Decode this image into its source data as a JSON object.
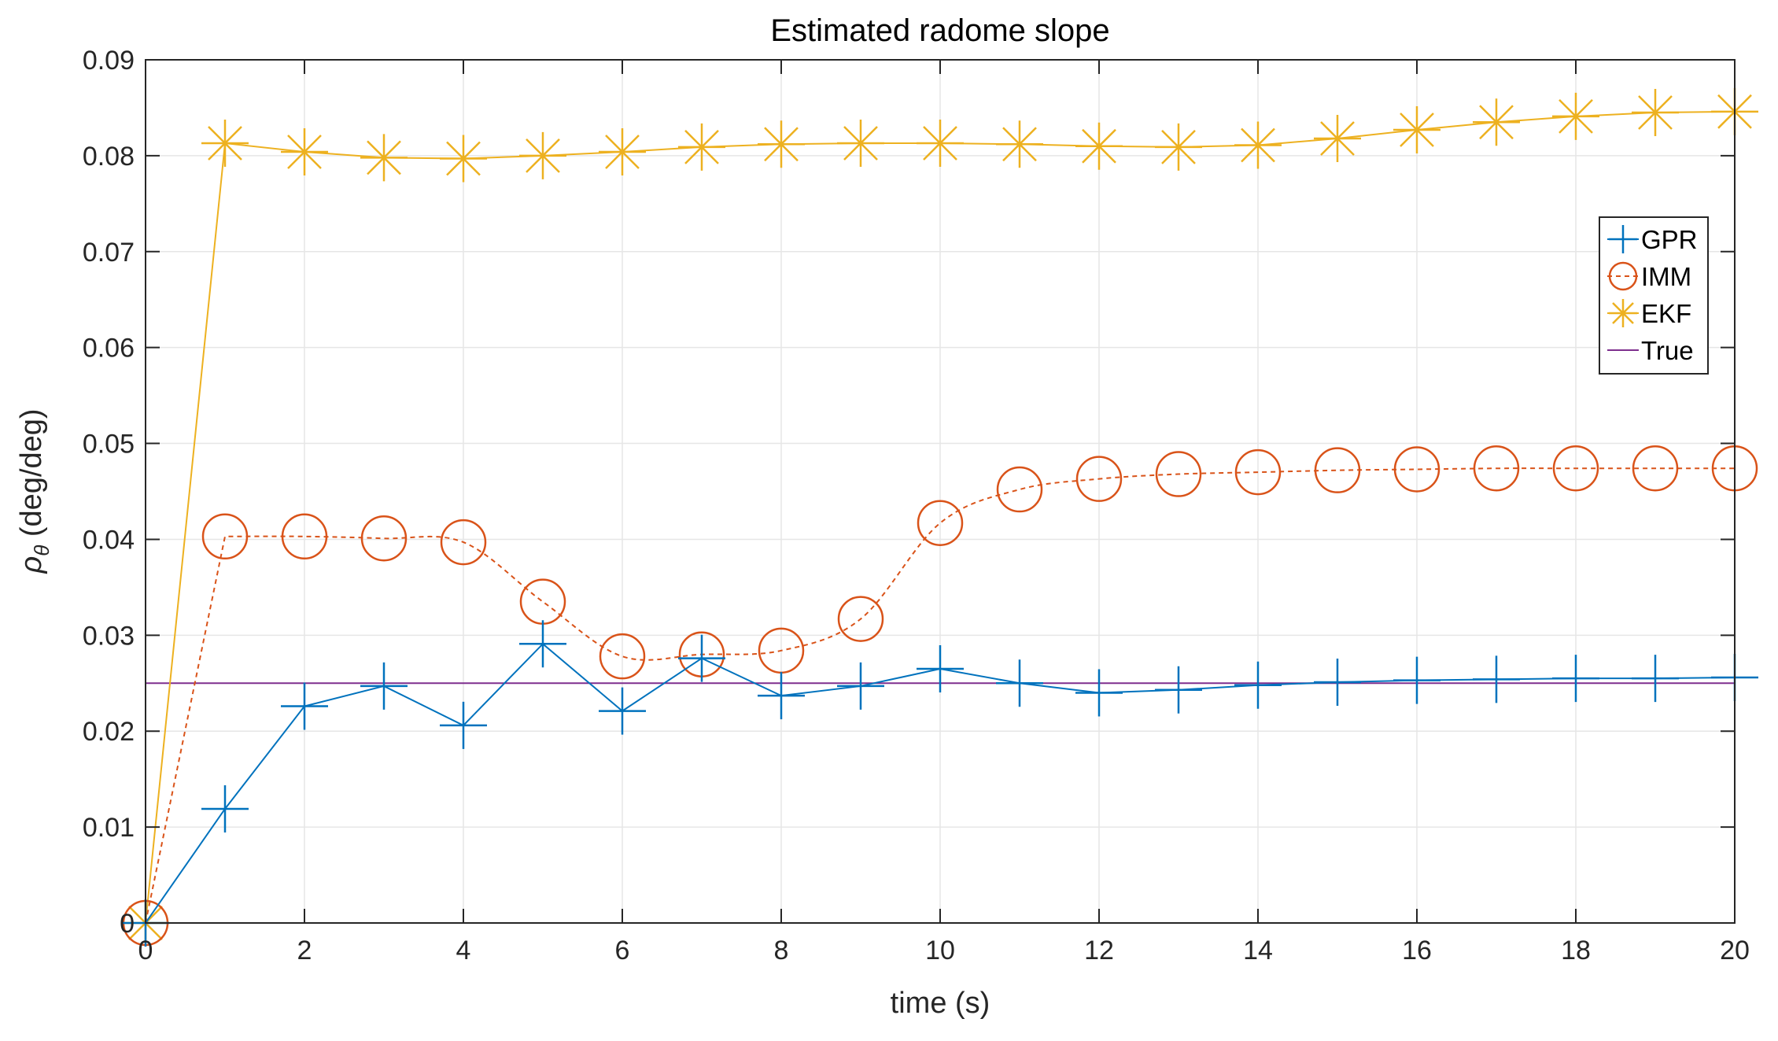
{
  "chart_data": {
    "type": "line",
    "title": "Estimated radome slope",
    "xlabel": "time (s)",
    "ylabel": {
      "symbol": "ρ",
      "subscript": "θ",
      "unit": " (deg/deg)"
    },
    "xlim": [
      0,
      20
    ],
    "ylim": [
      0,
      0.09
    ],
    "xticks": [
      0,
      2,
      4,
      6,
      8,
      10,
      12,
      14,
      16,
      18,
      20
    ],
    "xtick_labels": [
      "0",
      "2",
      "4",
      "6",
      "8",
      "10",
      "12",
      "14",
      "16",
      "18",
      "20"
    ],
    "yticks": [
      0,
      0.01,
      0.02,
      0.03,
      0.04,
      0.05,
      0.06,
      0.07,
      0.08,
      0.09
    ],
    "ytick_labels": [
      "0",
      "0.01",
      "0.02",
      "0.03",
      "0.04",
      "0.05",
      "0.06",
      "0.07",
      "0.08",
      "0.09"
    ],
    "grid": true,
    "legend_position": "right",
    "x": [
      0,
      1,
      2,
      3,
      4,
      5,
      6,
      7,
      8,
      9,
      10,
      11,
      12,
      13,
      14,
      15,
      16,
      17,
      18,
      19,
      20
    ],
    "series": [
      {
        "name": "GPR",
        "color": "#0072BD",
        "line": "solid",
        "marker": "plus",
        "values": [
          0.0,
          0.0119,
          0.0226,
          0.0247,
          0.0206,
          0.0291,
          0.0221,
          0.0276,
          0.0237,
          0.0247,
          0.0265,
          0.025,
          0.024,
          0.0243,
          0.0248,
          0.0251,
          0.0253,
          0.0254,
          0.0255,
          0.0255,
          0.0256
        ]
      },
      {
        "name": "IMM",
        "color": "#D95319",
        "line": "dashed",
        "marker": "circle",
        "values": [
          0.0,
          0.0403,
          0.0403,
          0.0401,
          0.0397,
          0.0335,
          0.0278,
          0.028,
          0.0284,
          0.0317,
          0.0417,
          0.0452,
          0.0463,
          0.0468,
          0.047,
          0.0472,
          0.0473,
          0.0474,
          0.0474,
          0.0474,
          0.0474
        ]
      },
      {
        "name": "EKF",
        "color": "#EDB120",
        "line": "solid",
        "marker": "asterisk",
        "values": [
          0.0,
          0.0813,
          0.0804,
          0.0798,
          0.0797,
          0.08,
          0.0804,
          0.0809,
          0.0812,
          0.0813,
          0.0813,
          0.0812,
          0.081,
          0.0809,
          0.0811,
          0.0818,
          0.0827,
          0.0835,
          0.0841,
          0.0845,
          0.0846
        ]
      },
      {
        "name": "True",
        "color": "#7E2F8E",
        "line": "solid",
        "marker": "none",
        "values": [
          0.025,
          0.025,
          0.025,
          0.025,
          0.025,
          0.025,
          0.025,
          0.025,
          0.025,
          0.025,
          0.025,
          0.025,
          0.025,
          0.025,
          0.025,
          0.025,
          0.025,
          0.025,
          0.025,
          0.025,
          0.025
        ]
      }
    ]
  }
}
